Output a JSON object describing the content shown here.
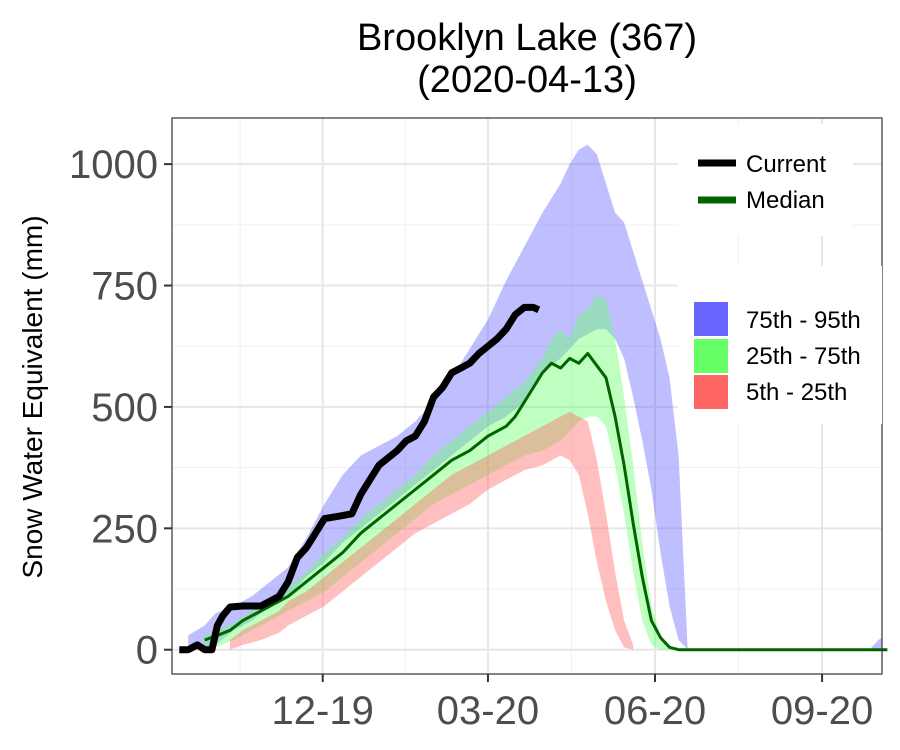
{
  "chart_data": {
    "type": "area",
    "title": "Brooklyn Lake (367)",
    "subtitle": "(2020-04-13)",
    "xlabel": "",
    "ylabel": "Snow Water Equivalent (mm)",
    "x_unit": "days since 2019-10-01",
    "xlim": [
      -4,
      387
    ],
    "ylim": [
      -50,
      1095
    ],
    "yticks": [
      0,
      250,
      500,
      750,
      1000
    ],
    "ytick_labels": [
      "0",
      "250",
      "500",
      "750",
      "1000"
    ],
    "xticks": [
      79,
      170,
      262,
      354
    ],
    "xtick_labels": [
      "12-19",
      "03-20",
      "06-20",
      "09-20"
    ],
    "grid": true,
    "legend": [
      {
        "label": "Current",
        "kind": "line",
        "color": "#000000"
      },
      {
        "label": "Median",
        "kind": "line",
        "color": "#006400"
      },
      {
        "label": "75th - 95th",
        "kind": "fill",
        "color": "#6666ff"
      },
      {
        "label": "25th - 75th",
        "kind": "fill",
        "color": "#66ff66"
      },
      {
        "label": "5th - 25th",
        "kind": "fill",
        "color": "#ff6666"
      }
    ],
    "series": [
      {
        "name": "Current",
        "color": "#000000",
        "x": [
          0,
          5,
          10,
          14,
          18,
          21,
          24,
          28,
          35,
          45,
          55,
          60,
          65,
          70,
          75,
          80,
          88,
          95,
          100,
          110,
          120,
          125,
          130,
          135,
          140,
          145,
          150,
          155,
          160,
          165,
          170,
          175,
          180,
          185,
          190,
          195,
          198
        ],
        "y": [
          0,
          0,
          10,
          0,
          0,
          50,
          70,
          88,
          90,
          90,
          110,
          140,
          190,
          210,
          240,
          270,
          275,
          280,
          320,
          380,
          410,
          430,
          440,
          470,
          520,
          540,
          570,
          580,
          590,
          610,
          625,
          640,
          660,
          690,
          705,
          705,
          700
        ]
      },
      {
        "name": "Median",
        "color": "#006400",
        "x": [
          14,
          20,
          28,
          35,
          45,
          55,
          60,
          70,
          80,
          90,
          100,
          110,
          120,
          130,
          140,
          150,
          160,
          170,
          180,
          185,
          190,
          195,
          200,
          205,
          210,
          215,
          220,
          225,
          230,
          235,
          240,
          245,
          250,
          255,
          260,
          265,
          270,
          275,
          280,
          390
        ],
        "y": [
          20,
          28,
          40,
          60,
          80,
          100,
          110,
          140,
          170,
          200,
          240,
          270,
          300,
          330,
          360,
          390,
          410,
          440,
          460,
          480,
          510,
          540,
          570,
          590,
          580,
          600,
          590,
          610,
          585,
          560,
          480,
          380,
          260,
          150,
          60,
          25,
          5,
          0,
          0,
          0
        ]
      }
    ],
    "bands": [
      {
        "name": "75th - 95th",
        "color": "#6666ff",
        "x": [
          5,
          14,
          20,
          30,
          40,
          50,
          60,
          70,
          80,
          90,
          100,
          110,
          120,
          130,
          140,
          150,
          160,
          170,
          180,
          190,
          200,
          210,
          215,
          220,
          225,
          230,
          235,
          240,
          245,
          250,
          255,
          260,
          265,
          270,
          275,
          280,
          290,
          300,
          380,
          385,
          387
        ],
        "lower": [
          0,
          5,
          10,
          40,
          60,
          90,
          110,
          150,
          180,
          220,
          250,
          280,
          310,
          340,
          370,
          400,
          430,
          460,
          480,
          510,
          570,
          600,
          620,
          640,
          650,
          660,
          660,
          640,
          600,
          520,
          430,
          330,
          200,
          90,
          20,
          0,
          0,
          0,
          0,
          0,
          0
        ],
        "upper": [
          30,
          50,
          75,
          90,
          110,
          140,
          170,
          230,
          300,
          360,
          400,
          420,
          440,
          470,
          510,
          560,
          620,
          680,
          760,
          830,
          900,
          960,
          1000,
          1030,
          1040,
          1020,
          960,
          900,
          880,
          820,
          760,
          700,
          640,
          560,
          400,
          0,
          0,
          0,
          0,
          20,
          25
        ]
      },
      {
        "name": "25th - 75th",
        "color": "#66ff66",
        "x": [
          14,
          20,
          30,
          40,
          50,
          60,
          70,
          80,
          90,
          100,
          110,
          120,
          130,
          140,
          150,
          160,
          170,
          180,
          190,
          200,
          205,
          210,
          215,
          220,
          225,
          230,
          235,
          240,
          245,
          250,
          255,
          260,
          265,
          270,
          275,
          280
        ],
        "lower": [
          0,
          5,
          20,
          40,
          60,
          80,
          100,
          120,
          150,
          180,
          210,
          240,
          270,
          300,
          320,
          340,
          360,
          380,
          400,
          410,
          420,
          430,
          450,
          470,
          480,
          480,
          460,
          380,
          280,
          160,
          60,
          10,
          0,
          0,
          0,
          0
        ],
        "upper": [
          30,
          40,
          55,
          80,
          100,
          130,
          160,
          200,
          230,
          270,
          300,
          330,
          360,
          400,
          430,
          460,
          490,
          520,
          550,
          600,
          640,
          660,
          640,
          690,
          700,
          730,
          720,
          640,
          520,
          380,
          220,
          90,
          30,
          5,
          0,
          0
        ]
      },
      {
        "name": "5th - 25th",
        "color": "#ff6666",
        "x": [
          28,
          35,
          45,
          55,
          60,
          70,
          80,
          90,
          100,
          110,
          120,
          130,
          140,
          150,
          160,
          170,
          180,
          190,
          200,
          210,
          215,
          220,
          225,
          230,
          235,
          240,
          245,
          250
        ],
        "lower": [
          0,
          10,
          20,
          35,
          50,
          70,
          90,
          120,
          150,
          180,
          210,
          240,
          260,
          280,
          300,
          330,
          350,
          370,
          380,
          400,
          390,
          360,
          280,
          180,
          100,
          40,
          5,
          0
        ],
        "upper": [
          20,
          40,
          60,
          80,
          100,
          120,
          150,
          180,
          210,
          240,
          270,
          300,
          330,
          360,
          380,
          400,
          420,
          440,
          460,
          480,
          490,
          480,
          470,
          390,
          280,
          160,
          60,
          10
        ]
      }
    ]
  }
}
